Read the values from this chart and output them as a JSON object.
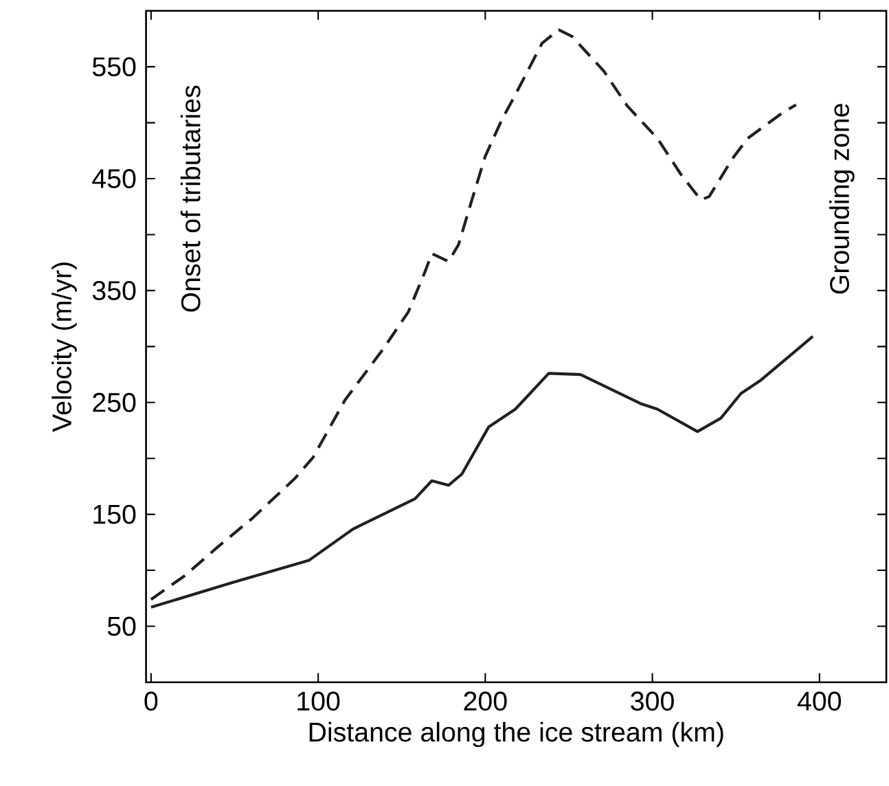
{
  "chart_data": {
    "type": "line",
    "xlabel": "Distance along the ice stream  (km)",
    "ylabel": "Velocity (m/yr)",
    "annotations": [
      "Onset of tributaries",
      "Grounding zone"
    ],
    "xlim": [
      -3,
      440
    ],
    "ylim": [
      0,
      600
    ],
    "xticks": [
      0,
      100,
      200,
      300,
      400
    ],
    "yticks": [
      50,
      {
        "value": 100,
        "label": null
      },
      150,
      {
        "value": 200,
        "label": null
      },
      250,
      {
        "value": 300,
        "label": null
      },
      350,
      {
        "value": 400,
        "label": null
      },
      450,
      {
        "value": 500,
        "label": null
      },
      550
    ],
    "marker": "none",
    "series": [
      {
        "color": "#231f20",
        "line_style": "solid",
        "x": [
          0,
          48.5,
          94.6,
          121,
          158,
          168,
          178,
          186,
          202,
          218,
          238,
          257,
          293,
          303,
          327,
          341,
          353,
          365,
          396
        ],
        "values": [
          67,
          89,
          109,
          137,
          164,
          180,
          176,
          186,
          228,
          244,
          276,
          275,
          249,
          244,
          224,
          236,
          258,
          270,
          309
        ]
      },
      {
        "color": "#231f20",
        "line_style": "dashed",
        "x": [
          0,
          20,
          40,
          61,
          86,
          97,
          116,
          139,
          154,
          164,
          168,
          178,
          184,
          192,
          200,
          210,
          218,
          234,
          244,
          252,
          271,
          285,
          303,
          317,
          329,
          334,
          348,
          357,
          378,
          386
        ],
        "values": [
          74,
          95,
          121,
          147,
          182,
          201,
          252,
          298,
          331,
          367,
          383,
          376,
          391,
          431,
          470,
          503,
          525,
          571,
          583,
          577,
          546,
          515,
          486,
          454,
          431,
          434,
          468,
          486,
          509,
          516
        ]
      }
    ]
  }
}
